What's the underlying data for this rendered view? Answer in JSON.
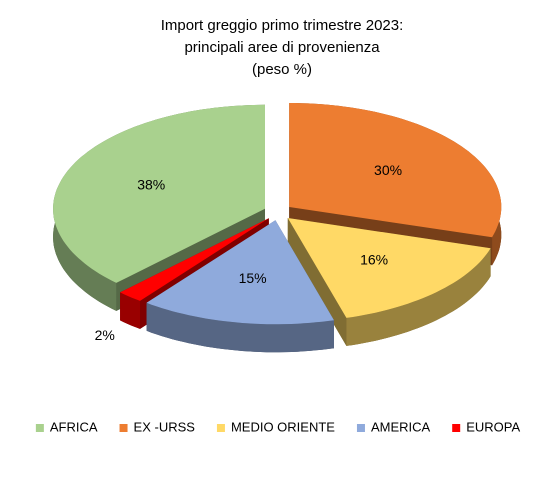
{
  "chart_data": {
    "type": "pie3d",
    "title": [
      "Import greggio primo trimestre 2023:",
      "principali aree di provenienza"
    ],
    "subtitle": "(peso %)",
    "categories": [
      "AFRICA",
      "EX -URSS",
      "MEDIO ORIENTE",
      "AMERICA",
      "EUROPA"
    ],
    "values": [
      38,
      30,
      16,
      15,
      2
    ],
    "value_labels": [
      "38%",
      "30%",
      "16%",
      "15%",
      "2%"
    ],
    "colors": [
      "#a9d18e",
      "#ed7d31",
      "#ffd966",
      "#8faadc",
      "#ff0000"
    ],
    "legend": "bottom"
  }
}
